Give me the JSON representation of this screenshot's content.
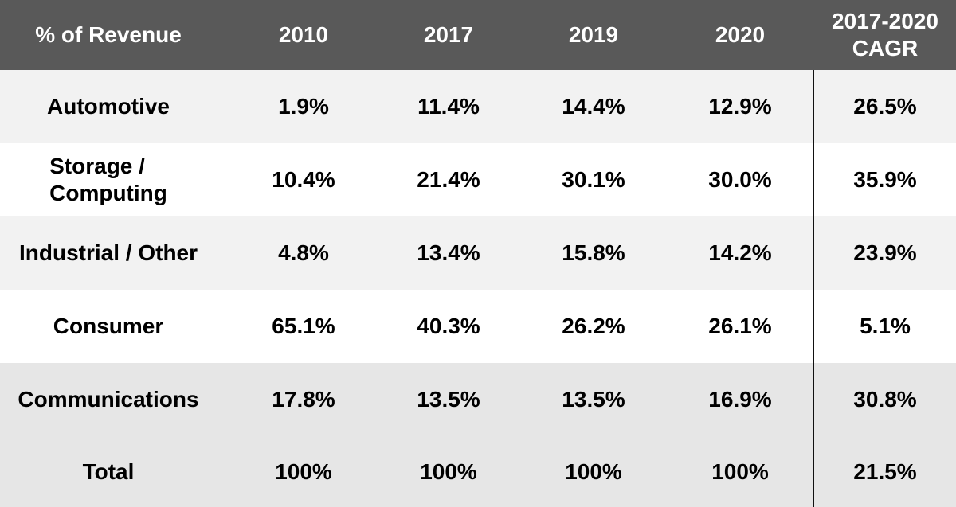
{
  "chart_data": {
    "type": "table",
    "columns": [
      "% of Revenue",
      "2010",
      "2017",
      "2019",
      "2020",
      "2017-2020\nCAGR"
    ],
    "rows": [
      [
        "Automotive",
        "1.9%",
        "11.4%",
        "14.4%",
        "12.9%",
        "26.5%"
      ],
      [
        "Storage /\nComputing",
        "10.4%",
        "21.4%",
        "30.1%",
        "30.0%",
        "35.9%"
      ],
      [
        "Industrial / Other",
        "4.8%",
        "13.4%",
        "15.8%",
        "14.2%",
        "23.9%"
      ],
      [
        "Consumer",
        "65.1%",
        "40.3%",
        "26.2%",
        "26.1%",
        "5.1%"
      ],
      [
        "Communications",
        "17.8%",
        "13.5%",
        "13.5%",
        "16.9%",
        "30.8%"
      ],
      [
        "Total",
        "100%",
        "100%",
        "100%",
        "100%",
        "21.5%"
      ]
    ]
  },
  "colors": {
    "header_bg": "#595959",
    "header_text": "#ffffff",
    "row_light": "#f2f2f2",
    "row_white": "#ffffff",
    "row_grey": "#e6e6e6"
  }
}
